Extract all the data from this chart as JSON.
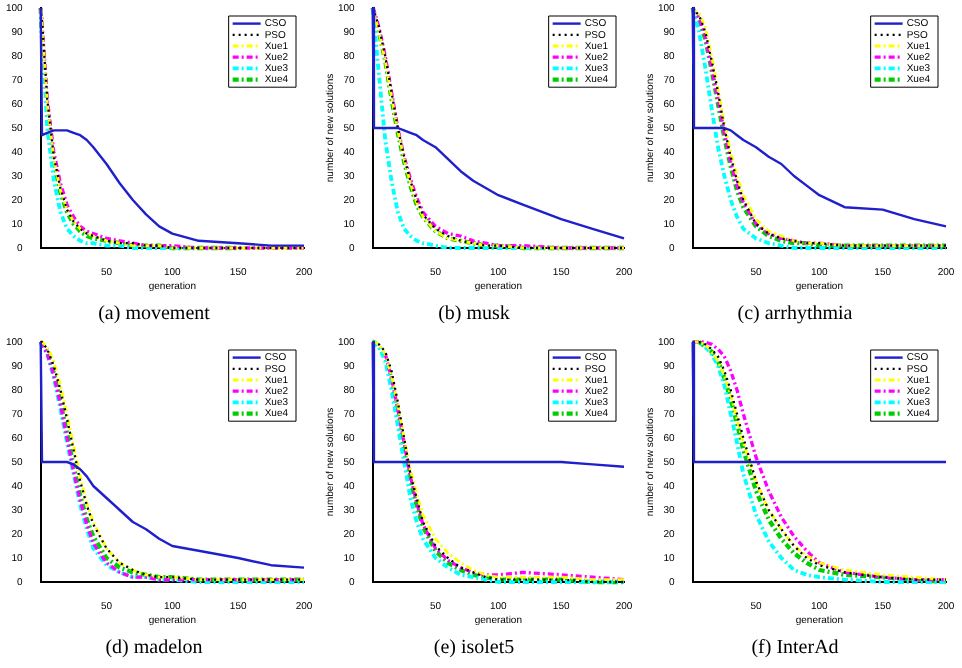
{
  "chart_data": [
    {
      "type": "line",
      "title": "(a) movement",
      "xlabel": "generation",
      "x": [
        0,
        1,
        5,
        10,
        15,
        20,
        25,
        30,
        35,
        40,
        50,
        60,
        70,
        80,
        90,
        100,
        120,
        150,
        175,
        200
      ],
      "xlim": [
        0,
        200
      ],
      "xticks": [
        50,
        100,
        150,
        200
      ],
      "ylim": [
        0,
        100
      ],
      "yticks": [
        0,
        10,
        20,
        30,
        40,
        50,
        60,
        70,
        80,
        90,
        100
      ],
      "grid": false,
      "legend": "top right",
      "marker": "none",
      "series": [
        {
          "name": "CSO",
          "color": "#1f1fcc",
          "line_style": "solid",
          "values": [
            100,
            47,
            48,
            49,
            49,
            49,
            48,
            47,
            45,
            42,
            35,
            27,
            20,
            14,
            9,
            6,
            3,
            2,
            1,
            1
          ]
        },
        {
          "name": "PSO",
          "color": "#000000",
          "line_style": "dotted",
          "values": [
            100,
            95,
            62,
            38,
            25,
            16,
            11,
            8,
            6,
            5,
            3,
            2,
            2,
            1,
            1,
            0,
            0,
            0,
            0,
            0
          ]
        },
        {
          "name": "Xue1",
          "color": "#ffff00",
          "line_style": "dashed",
          "values": [
            100,
            93,
            60,
            37,
            24,
            16,
            11,
            8,
            6,
            5,
            3,
            2,
            1,
            1,
            1,
            0,
            0,
            0,
            0,
            0
          ]
        },
        {
          "name": "Xue2",
          "color": "#ff00ff",
          "line_style": "dashed",
          "values": [
            100,
            94,
            62,
            40,
            27,
            18,
            13,
            9,
            7,
            6,
            4,
            3,
            2,
            1,
            1,
            1,
            0,
            0,
            0,
            0
          ]
        },
        {
          "name": "Xue3",
          "color": "#00ffff",
          "line_style": "dashed",
          "values": [
            100,
            90,
            50,
            28,
            15,
            8,
            5,
            3,
            2,
            2,
            1,
            1,
            0,
            0,
            0,
            0,
            0,
            0,
            null,
            null
          ]
        },
        {
          "name": "Xue4",
          "color": "#00cc00",
          "line_style": "dashed",
          "values": [
            100,
            88,
            58,
            36,
            23,
            15,
            10,
            7,
            5,
            4,
            3,
            2,
            1,
            1,
            1,
            0,
            0,
            0,
            null,
            null
          ]
        }
      ]
    },
    {
      "type": "line",
      "title": "(b) musk",
      "xlabel": "generation",
      "ylabel": "number of new solutions",
      "x": [
        0,
        1,
        5,
        10,
        15,
        20,
        25,
        30,
        35,
        40,
        50,
        60,
        70,
        80,
        90,
        100,
        120,
        150,
        175,
        200
      ],
      "xlim": [
        0,
        200
      ],
      "xticks": [
        50,
        100,
        150,
        200
      ],
      "ylim": [
        0,
        100
      ],
      "yticks": [
        0,
        10,
        20,
        30,
        40,
        50,
        60,
        70,
        80,
        90,
        100
      ],
      "grid": false,
      "legend": "top right",
      "marker": "none",
      "series": [
        {
          "name": "CSO",
          "color": "#1f1fcc",
          "line_style": "solid",
          "values": [
            100,
            50,
            50,
            50,
            50,
            50,
            49,
            48,
            47,
            45,
            42,
            37,
            32,
            28,
            25,
            22,
            18,
            12,
            8,
            4
          ]
        },
        {
          "name": "PSO",
          "color": "#000000",
          "line_style": "dotted",
          "values": [
            100,
            99,
            92,
            80,
            65,
            50,
            38,
            28,
            20,
            14,
            8,
            5,
            3,
            2,
            1,
            1,
            0,
            0,
            0,
            0
          ]
        },
        {
          "name": "Xue1",
          "color": "#ffff00",
          "line_style": "dashed",
          "values": [
            100,
            98,
            90,
            78,
            63,
            49,
            37,
            27,
            19,
            13,
            7,
            4,
            3,
            2,
            1,
            1,
            0,
            0,
            0,
            0
          ]
        },
        {
          "name": "Xue2",
          "color": "#ff00ff",
          "line_style": "dashed",
          "values": [
            100,
            99,
            92,
            80,
            65,
            50,
            38,
            29,
            21,
            15,
            9,
            6,
            5,
            3,
            2,
            1,
            1,
            0,
            0,
            0
          ]
        },
        {
          "name": "Xue3",
          "color": "#00ffff",
          "line_style": "dashed",
          "values": [
            100,
            95,
            72,
            45,
            28,
            15,
            8,
            5,
            3,
            2,
            1,
            0,
            0,
            0,
            0,
            0,
            0,
            0,
            0,
            0
          ]
        },
        {
          "name": "Xue4",
          "color": "#00cc00",
          "line_style": "dashed",
          "values": [
            100,
            97,
            90,
            78,
            62,
            48,
            36,
            26,
            18,
            13,
            7,
            4,
            3,
            2,
            1,
            1,
            0,
            0,
            0,
            0
          ]
        }
      ]
    },
    {
      "type": "line",
      "title": "(c) arrhythmia",
      "xlabel": "generation",
      "ylabel": "number of new solutions",
      "x": [
        0,
        1,
        5,
        10,
        15,
        20,
        25,
        30,
        35,
        40,
        50,
        60,
        70,
        80,
        90,
        100,
        120,
        150,
        175,
        200
      ],
      "xlim": [
        0,
        200
      ],
      "xticks": [
        50,
        100,
        150,
        200
      ],
      "ylim": [
        0,
        100
      ],
      "yticks": [
        0,
        10,
        20,
        30,
        40,
        50,
        60,
        70,
        80,
        90,
        100
      ],
      "grid": false,
      "legend": "top right",
      "marker": "none",
      "series": [
        {
          "name": "CSO",
          "color": "#1f1fcc",
          "line_style": "solid",
          "values": [
            100,
            50,
            50,
            50,
            50,
            50,
            50,
            49,
            47,
            45,
            42,
            38,
            35,
            30,
            26,
            22,
            17,
            16,
            12,
            9
          ]
        },
        {
          "name": "PSO",
          "color": "#000000",
          "line_style": "dotted",
          "values": [
            100,
            99,
            97,
            90,
            78,
            65,
            50,
            38,
            28,
            20,
            10,
            6,
            4,
            3,
            2,
            2,
            1,
            1,
            1,
            1
          ]
        },
        {
          "name": "Xue1",
          "color": "#ffff00",
          "line_style": "dashed",
          "values": [
            100,
            99,
            98,
            92,
            80,
            66,
            52,
            40,
            30,
            22,
            12,
            7,
            5,
            3,
            2,
            2,
            1,
            1,
            1,
            1
          ]
        },
        {
          "name": "Xue2",
          "color": "#ff00ff",
          "line_style": "dashed",
          "values": [
            100,
            99,
            96,
            88,
            75,
            62,
            48,
            36,
            26,
            19,
            10,
            6,
            4,
            3,
            2,
            2,
            1,
            1,
            1,
            1
          ]
        },
        {
          "name": "Xue3",
          "color": "#00ffff",
          "line_style": "dashed",
          "values": [
            100,
            98,
            90,
            75,
            58,
            42,
            30,
            20,
            13,
            8,
            4,
            2,
            1,
            0,
            0,
            0,
            0,
            0,
            0,
            0
          ]
        },
        {
          "name": "Xue4",
          "color": "#00cc00",
          "line_style": "dashed",
          "values": [
            100,
            98,
            95,
            87,
            74,
            60,
            46,
            34,
            24,
            17,
            9,
            5,
            3,
            2,
            2,
            1,
            1,
            1,
            1,
            1
          ]
        }
      ]
    },
    {
      "type": "line",
      "title": "(d) madelon",
      "xlabel": "generation",
      "x": [
        0,
        1,
        5,
        10,
        15,
        20,
        25,
        30,
        35,
        40,
        50,
        60,
        70,
        80,
        90,
        100,
        120,
        150,
        175,
        200
      ],
      "xlim": [
        0,
        200
      ],
      "xticks": [
        50,
        100,
        150,
        200
      ],
      "ylim": [
        0,
        100
      ],
      "yticks": [
        0,
        10,
        20,
        30,
        40,
        50,
        60,
        70,
        80,
        90,
        100
      ],
      "grid": false,
      "legend": "top right",
      "marker": "none",
      "series": [
        {
          "name": "CSO",
          "color": "#1f1fcc",
          "line_style": "solid",
          "values": [
            100,
            50,
            50,
            50,
            50,
            50,
            49,
            47,
            44,
            40,
            35,
            30,
            25,
            22,
            18,
            15,
            13,
            10,
            7,
            6
          ]
        },
        {
          "name": "PSO",
          "color": "#000000",
          "line_style": "dotted",
          "values": [
            100,
            100,
            97,
            90,
            80,
            68,
            55,
            42,
            32,
            24,
            14,
            8,
            5,
            3,
            2,
            2,
            1,
            1,
            1,
            1
          ]
        },
        {
          "name": "Xue1",
          "color": "#ffff00",
          "line_style": "dashed",
          "values": [
            100,
            100,
            98,
            92,
            82,
            70,
            57,
            44,
            33,
            25,
            14,
            8,
            5,
            3,
            2,
            2,
            1,
            1,
            1,
            1
          ]
        },
        {
          "name": "Xue2",
          "color": "#ff00ff",
          "line_style": "dashed",
          "values": [
            100,
            99,
            95,
            86,
            74,
            60,
            46,
            34,
            24,
            16,
            8,
            4,
            2,
            2,
            1,
            1,
            1,
            1,
            1,
            1
          ]
        },
        {
          "name": "Xue3",
          "color": "#00ffff",
          "line_style": "dashed",
          "values": [
            100,
            99,
            95,
            85,
            72,
            58,
            45,
            32,
            22,
            14,
            7,
            4,
            2,
            2,
            1,
            1,
            0,
            0,
            0,
            0
          ]
        },
        {
          "name": "Xue4",
          "color": "#00cc00",
          "line_style": "dashed",
          "values": [
            100,
            99,
            96,
            87,
            75,
            62,
            48,
            36,
            26,
            19,
            10,
            6,
            4,
            3,
            2,
            2,
            1,
            1,
            1,
            1
          ]
        }
      ]
    },
    {
      "type": "line",
      "title": "(e) isolet5",
      "xlabel": "generation",
      "ylabel": "number of new solutions",
      "x": [
        0,
        1,
        5,
        10,
        15,
        20,
        25,
        30,
        35,
        40,
        50,
        60,
        70,
        80,
        90,
        100,
        120,
        150,
        175,
        200
      ],
      "xlim": [
        0,
        200
      ],
      "xticks": [
        50,
        100,
        150,
        200
      ],
      "ylim": [
        0,
        100
      ],
      "yticks": [
        0,
        10,
        20,
        30,
        40,
        50,
        60,
        70,
        80,
        90,
        100
      ],
      "grid": false,
      "legend": "top right",
      "marker": "none",
      "series": [
        {
          "name": "CSO",
          "color": "#1f1fcc",
          "line_style": "solid",
          "values": [
            100,
            50,
            50,
            50,
            50,
            50,
            50,
            50,
            50,
            50,
            50,
            50,
            50,
            50,
            50,
            50,
            50,
            50,
            49,
            48
          ]
        },
        {
          "name": "PSO",
          "color": "#000000",
          "line_style": "dotted",
          "values": [
            100,
            100,
            99,
            96,
            88,
            75,
            60,
            45,
            35,
            25,
            15,
            10,
            6,
            4,
            2,
            1,
            1,
            1,
            0,
            0
          ]
        },
        {
          "name": "Xue1",
          "color": "#ffff00",
          "line_style": "dashed",
          "values": [
            100,
            100,
            99,
            95,
            86,
            74,
            60,
            47,
            37,
            28,
            18,
            12,
            8,
            5,
            3,
            2,
            2,
            2,
            1,
            1
          ]
        },
        {
          "name": "Xue2",
          "color": "#ff00ff",
          "line_style": "dashed",
          "values": [
            null,
            null,
            null,
            95,
            85,
            72,
            58,
            44,
            33,
            24,
            14,
            9,
            6,
            4,
            3,
            3,
            4,
            3,
            2,
            1
          ]
        },
        {
          "name": "Xue3",
          "color": "#00ffff",
          "line_style": "dashed",
          "values": [
            100,
            100,
            98,
            92,
            80,
            65,
            50,
            35,
            25,
            18,
            10,
            6,
            3,
            2,
            1,
            0,
            0,
            0,
            0,
            0
          ]
        },
        {
          "name": "Xue4",
          "color": "#00cc00",
          "line_style": "dashed",
          "values": [
            100,
            100,
            98,
            94,
            84,
            70,
            55,
            42,
            32,
            23,
            13,
            8,
            5,
            3,
            2,
            1,
            1,
            1,
            0,
            0
          ]
        }
      ]
    },
    {
      "type": "line",
      "title": "(f) InterAd",
      "xlabel": "generation",
      "ylabel": "number of new solutions",
      "x": [
        0,
        1,
        5,
        10,
        15,
        20,
        25,
        30,
        35,
        40,
        50,
        60,
        70,
        80,
        90,
        100,
        120,
        150,
        175,
        200
      ],
      "xlim": [
        0,
        200
      ],
      "xticks": [
        50,
        100,
        150,
        200
      ],
      "ylim": [
        0,
        100
      ],
      "yticks": [
        0,
        10,
        20,
        30,
        40,
        50,
        60,
        70,
        80,
        90,
        100
      ],
      "grid": false,
      "legend": "top right",
      "marker": "none",
      "series": [
        {
          "name": "CSO",
          "color": "#1f1fcc",
          "line_style": "solid",
          "values": [
            100,
            50,
            50,
            50,
            50,
            50,
            50,
            50,
            50,
            50,
            50,
            50,
            50,
            50,
            50,
            50,
            50,
            50,
            50,
            50
          ]
        },
        {
          "name": "PSO",
          "color": "#000000",
          "line_style": "dotted",
          "values": [
            100,
            100,
            100,
            99,
            97,
            94,
            88,
            80,
            70,
            60,
            42,
            30,
            22,
            15,
            10,
            7,
            4,
            2,
            1,
            1
          ]
        },
        {
          "name": "Xue1",
          "color": "#ffff00",
          "line_style": "dashed",
          "values": [
            100,
            100,
            100,
            99,
            96,
            92,
            86,
            78,
            68,
            58,
            42,
            30,
            22,
            15,
            11,
            8,
            5,
            3,
            2,
            1
          ]
        },
        {
          "name": "Xue2",
          "color": "#ff00ff",
          "line_style": "dashed",
          "values": [
            100,
            100,
            100,
            100,
            99,
            97,
            94,
            88,
            80,
            70,
            52,
            38,
            27,
            19,
            13,
            8,
            4,
            2,
            1,
            1
          ]
        },
        {
          "name": "Xue3",
          "color": "#00ffff",
          "line_style": "dashed",
          "values": [
            100,
            100,
            100,
            98,
            95,
            90,
            82,
            70,
            58,
            45,
            28,
            17,
            10,
            5,
            3,
            2,
            1,
            0,
            0,
            0
          ]
        },
        {
          "name": "Xue4",
          "color": "#00cc00",
          "line_style": "dashed",
          "values": [
            null,
            null,
            100,
            98,
            96,
            92,
            85,
            76,
            66,
            55,
            38,
            26,
            18,
            12,
            8,
            5,
            3,
            2,
            1,
            0
          ]
        }
      ]
    }
  ]
}
